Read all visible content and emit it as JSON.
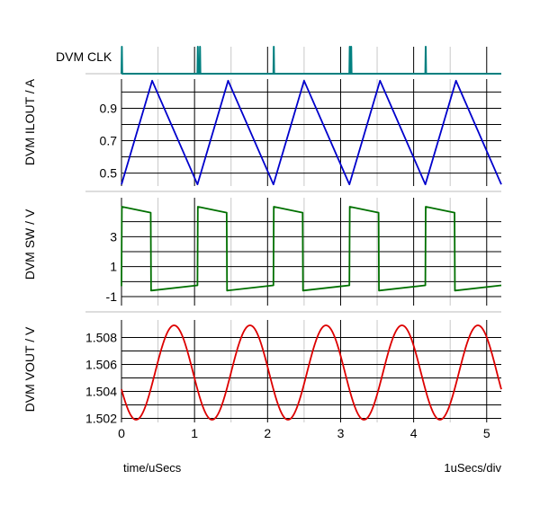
{
  "chart_data": {
    "type": "line",
    "x_unit": "time/uSecs",
    "x_scale_note": "1uSecs/div",
    "xlim": [
      0,
      5.2
    ],
    "x_ticks": [
      "0",
      "1",
      "2",
      "3",
      "4",
      "5"
    ],
    "panels": [
      {
        "id": "clk",
        "label": "DVM CLK",
        "color": "#008080",
        "ylim": [
          0,
          1
        ],
        "y_ticks": [],
        "y_gridlines": [],
        "x": [
          0,
          0.005,
          0.01,
          1.04,
          1.045,
          1.05,
          1.07,
          1.075,
          1.08,
          2.08,
          2.085,
          2.09,
          3.12,
          3.125,
          3.13,
          3.14,
          3.145,
          3.15,
          4.16,
          4.165,
          4.17,
          5.2
        ],
        "y": [
          0,
          1,
          0,
          0,
          1,
          0,
          0,
          1,
          0,
          0,
          1,
          0,
          0,
          1,
          0,
          0,
          1,
          0,
          0,
          1,
          0,
          0
        ]
      },
      {
        "id": "ilout",
        "label": "DVM ILOUT / A",
        "color": "#0000cc",
        "ylim": [
          0.42,
          1.08
        ],
        "y_ticks": [
          "0.9",
          "0.7",
          "0.5"
        ],
        "y_tick_values": [
          0.9,
          0.7,
          0.5
        ],
        "y_gridlines": [
          0.5,
          0.6,
          0.7,
          0.8,
          0.9,
          1.0
        ],
        "x": [
          0,
          0.42,
          1.04,
          1.46,
          2.08,
          2.5,
          3.12,
          3.54,
          4.16,
          4.58,
          5.2
        ],
        "y": [
          0.43,
          1.07,
          0.43,
          1.07,
          0.43,
          1.07,
          0.43,
          1.07,
          0.43,
          1.07,
          0.43
        ]
      },
      {
        "id": "sw",
        "label": "DVM SW / V",
        "color": "#007000",
        "ylim": [
          -1.6,
          5.6
        ],
        "y_ticks": [
          "3",
          "1",
          "-1"
        ],
        "y_tick_values": [
          3,
          1,
          -1
        ],
        "y_gridlines": [
          -1,
          0,
          1,
          2,
          3,
          4
        ],
        "x": [
          0,
          0.005,
          0.4,
          0.405,
          1.04,
          1.045,
          1.44,
          1.445,
          2.08,
          2.085,
          2.48,
          2.485,
          3.12,
          3.125,
          3.52,
          3.525,
          4.16,
          4.165,
          4.56,
          4.565,
          5.2
        ],
        "y": [
          -0.3,
          5.0,
          4.6,
          -0.6,
          -0.25,
          5.0,
          4.6,
          -0.6,
          -0.25,
          5.0,
          4.6,
          -0.6,
          -0.25,
          5.0,
          4.6,
          -0.6,
          -0.25,
          5.0,
          4.6,
          -0.6,
          -0.25
        ]
      },
      {
        "id": "vout",
        "label": "DVM VOUT / V",
        "color": "#dd0000",
        "ylim": [
          1.5017,
          1.5093
        ],
        "y_ticks": [
          "1.508",
          "1.506",
          "1.504",
          "1.502"
        ],
        "y_tick_values": [
          1.508,
          1.506,
          1.504,
          1.502
        ],
        "y_gridlines": [
          1.502,
          1.503,
          1.504,
          1.505,
          1.506,
          1.507,
          1.508
        ],
        "wave": {
          "mean": 1.5054,
          "amplitude": 0.0035,
          "period": 1.04,
          "peak_at": 0.72
        }
      }
    ]
  }
}
